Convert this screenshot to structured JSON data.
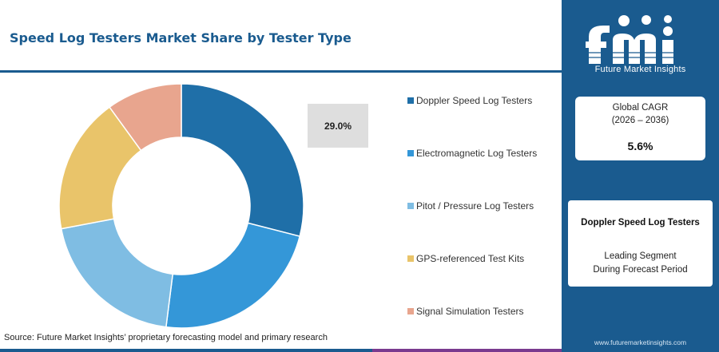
{
  "title": "Speed Log Testers Market Share by Tester Type",
  "chart_data": {
    "type": "pie",
    "variant": "donut",
    "title": "Speed Log Testers Market Share by Tester Type",
    "series": [
      {
        "name": "Doppler Speed Log Testers",
        "value": 29.0,
        "color": "#1f6fa8"
      },
      {
        "name": "Electromagnetic Log Testers",
        "value": 23.0,
        "color": "#3497d8"
      },
      {
        "name": "Pitot / Pressure Log Testers",
        "value": 20.0,
        "color": "#7fbde3"
      },
      {
        "name": "GPS-referenced Test Kits",
        "value": 18.0,
        "color": "#e9c46a"
      },
      {
        "name": "Signal Simulation Testers",
        "value": 10.0,
        "color": "#e8a58e"
      }
    ],
    "highlight_label": "29.0%",
    "legend_position": "right"
  },
  "source": "Source: Future Market Insights’ proprietary forecasting model and primary research",
  "bottom_bar_colors": [
    "#1a5b8f",
    "#e8863a",
    "#7a3a8f"
  ],
  "brand": {
    "logo_text": "fmi",
    "name": "Future Market Insights",
    "website": "www.futuremarketinsights.com",
    "panel_color": "#1a5b8f"
  },
  "cagr": {
    "label": "Global CAGR",
    "period": "(2026 – 2036)",
    "value": "5.6%"
  },
  "leading_segment": {
    "name": "Doppler Speed Log Testers",
    "line1": "Leading Segment",
    "line2": "During Forecast Period"
  }
}
